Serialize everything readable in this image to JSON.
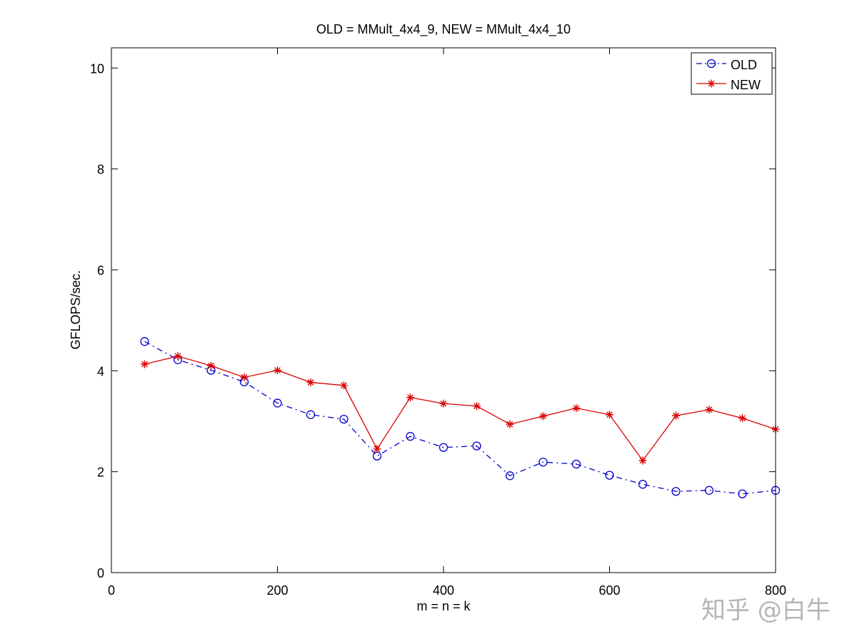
{
  "chart_data": {
    "type": "line",
    "title": "OLD = MMult_4x4_9, NEW = MMult_4x4_10",
    "xlabel": "m = n = k",
    "ylabel": "GFLOPS/sec.",
    "xlim": [
      0,
      800
    ],
    "ylim": [
      0,
      10.4
    ],
    "xticks": [
      0,
      200,
      400,
      600,
      800
    ],
    "yticks": [
      0,
      2,
      4,
      6,
      8,
      10
    ],
    "x": [
      40,
      80,
      120,
      160,
      200,
      240,
      280,
      320,
      360,
      400,
      440,
      480,
      520,
      560,
      600,
      640,
      680,
      720,
      760,
      800
    ],
    "series": [
      {
        "name": "OLD",
        "color": "#0000cc",
        "marker": "circle",
        "linestyle": "dash-dot",
        "values": [
          4.58,
          4.22,
          4.01,
          3.78,
          3.36,
          3.13,
          3.04,
          2.31,
          2.7,
          2.48,
          2.51,
          1.92,
          2.19,
          2.15,
          1.93,
          1.75,
          1.61,
          1.63,
          1.56,
          1.63
        ]
      },
      {
        "name": "NEW",
        "color": "#dd0000",
        "marker": "asterisk",
        "linestyle": "solid",
        "values": [
          4.13,
          4.29,
          4.1,
          3.87,
          4.01,
          3.77,
          3.71,
          2.45,
          3.47,
          3.35,
          3.3,
          2.94,
          3.1,
          3.26,
          3.13,
          2.22,
          3.11,
          3.23,
          3.06,
          2.84
        ]
      }
    ],
    "legend_position": "top-right",
    "grid": false
  },
  "watermark": "知乎 @白牛"
}
